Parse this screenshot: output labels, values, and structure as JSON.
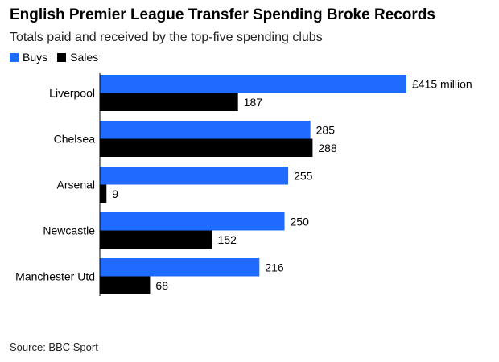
{
  "chart_data": {
    "type": "bar",
    "orientation": "horizontal",
    "title": "English Premier League Transfer Spending Broke Records",
    "subtitle": "Totals paid and received by the top-five spending clubs",
    "categories": [
      "Liverpool",
      "Chelsea",
      "Arsenal",
      "Newcastle",
      "Manchester Utd"
    ],
    "series": [
      {
        "name": "Buys",
        "color": "#1f6bff",
        "values": [
          415,
          285,
          255,
          250,
          216
        ],
        "labels": [
          "£415 million",
          "285",
          "255",
          "250",
          "216"
        ]
      },
      {
        "name": "Sales",
        "color": "#000000",
        "values": [
          187,
          288,
          9,
          152,
          68
        ],
        "labels": [
          "187",
          "288",
          "9",
          "152",
          "68"
        ]
      }
    ],
    "xlim": [
      0,
      415
    ],
    "grid": false,
    "legend": "top-left",
    "source": "Source: BBC Sport"
  }
}
